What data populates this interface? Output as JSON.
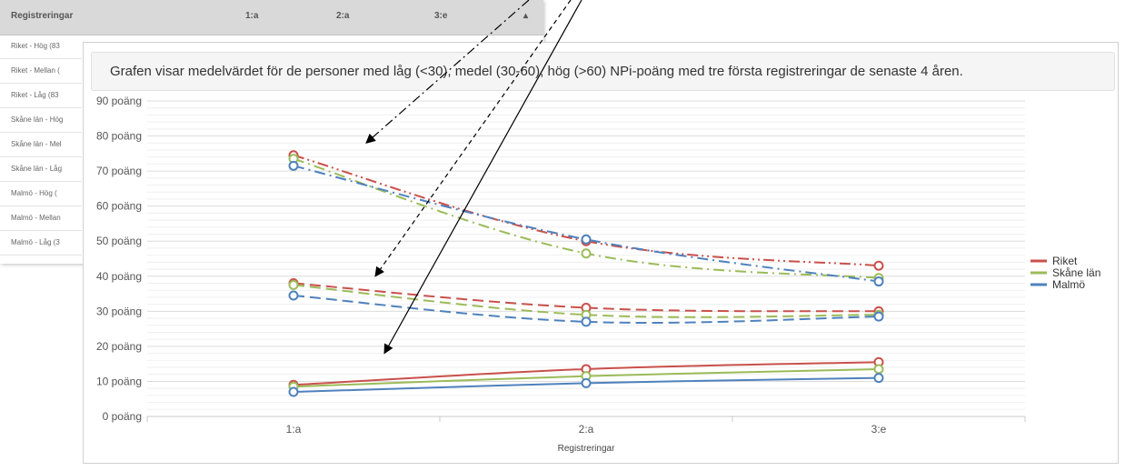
{
  "background_table": {
    "header": [
      "Registreringar",
      "1:a",
      "2:a",
      "3:e"
    ],
    "rows": [
      "Riket - Hög (83",
      "Riket - Mellan (",
      "Riket - Låg (83",
      "Skåne län - Hög",
      "Skåne län - Mel",
      "Skåne län - Låg",
      "Malmö - Hög (",
      "Malmö - Mellan",
      "Malmö - Låg (3"
    ]
  },
  "chart_data": {
    "type": "line",
    "title": "Grafen visar medelvärdet för de personer med låg (<30), medel (30-60), hög (>60) NPi-poäng med tre första registreringar de senaste 4 åren.",
    "xlabel": "Registreringar",
    "ylabel": "",
    "categories": [
      "1:a",
      "2:a",
      "3:e"
    ],
    "ylim": [
      0,
      90
    ],
    "y_ticks": [
      "0 poäng",
      "10 poäng",
      "20 poäng",
      "30 poäng",
      "40 poäng",
      "50 poäng",
      "60 poäng",
      "70 poäng",
      "80 poäng",
      "90 poäng"
    ],
    "grid": true,
    "legend": "right",
    "legend_entries": [
      {
        "name": "Riket",
        "color": "#c9504b"
      },
      {
        "name": "Skåne län",
        "color": "#9bbb59"
      },
      {
        "name": "Malmö",
        "color": "#4f81bd"
      }
    ],
    "series": [
      {
        "region": "Riket",
        "group": "hög",
        "style": "dashdotdot",
        "color": "#c9504b",
        "values": [
          74.5,
          50,
          43
        ]
      },
      {
        "region": "Skåne län",
        "group": "hög",
        "style": "dashdot",
        "color": "#9bbb59",
        "values": [
          73.5,
          46.5,
          39.5
        ]
      },
      {
        "region": "Malmö",
        "group": "hög",
        "style": "dashdot",
        "color": "#4f81bd",
        "values": [
          71.5,
          50.5,
          38.5
        ]
      },
      {
        "region": "Riket",
        "group": "medel",
        "style": "dashed",
        "color": "#c9504b",
        "values": [
          38,
          31,
          30
        ]
      },
      {
        "region": "Skåne län",
        "group": "medel",
        "style": "dashed",
        "color": "#9bbb59",
        "values": [
          37.5,
          29,
          29
        ]
      },
      {
        "region": "Malmö",
        "group": "medel",
        "style": "dashed",
        "color": "#4f81bd",
        "values": [
          34.5,
          27,
          28.5
        ]
      },
      {
        "region": "Riket",
        "group": "låg",
        "style": "solid",
        "color": "#c9504b",
        "values": [
          9,
          13.5,
          15.5
        ]
      },
      {
        "region": "Skåne län",
        "group": "låg",
        "style": "solid",
        "color": "#9bbb59",
        "values": [
          8.5,
          11.5,
          13.5
        ]
      },
      {
        "region": "Malmö",
        "group": "låg",
        "style": "solid",
        "color": "#4f81bd",
        "values": [
          7,
          9.5,
          11
        ]
      }
    ],
    "annotations": [
      {
        "type": "arrow",
        "style": "dashdot",
        "target": {
          "x": "1:a",
          "y": 78
        }
      },
      {
        "type": "arrow",
        "style": "dashed",
        "target": {
          "x": "1:a",
          "y": 40
        }
      },
      {
        "type": "arrow",
        "style": "solid",
        "target": {
          "x": "1:a",
          "y": 18
        }
      }
    ]
  }
}
